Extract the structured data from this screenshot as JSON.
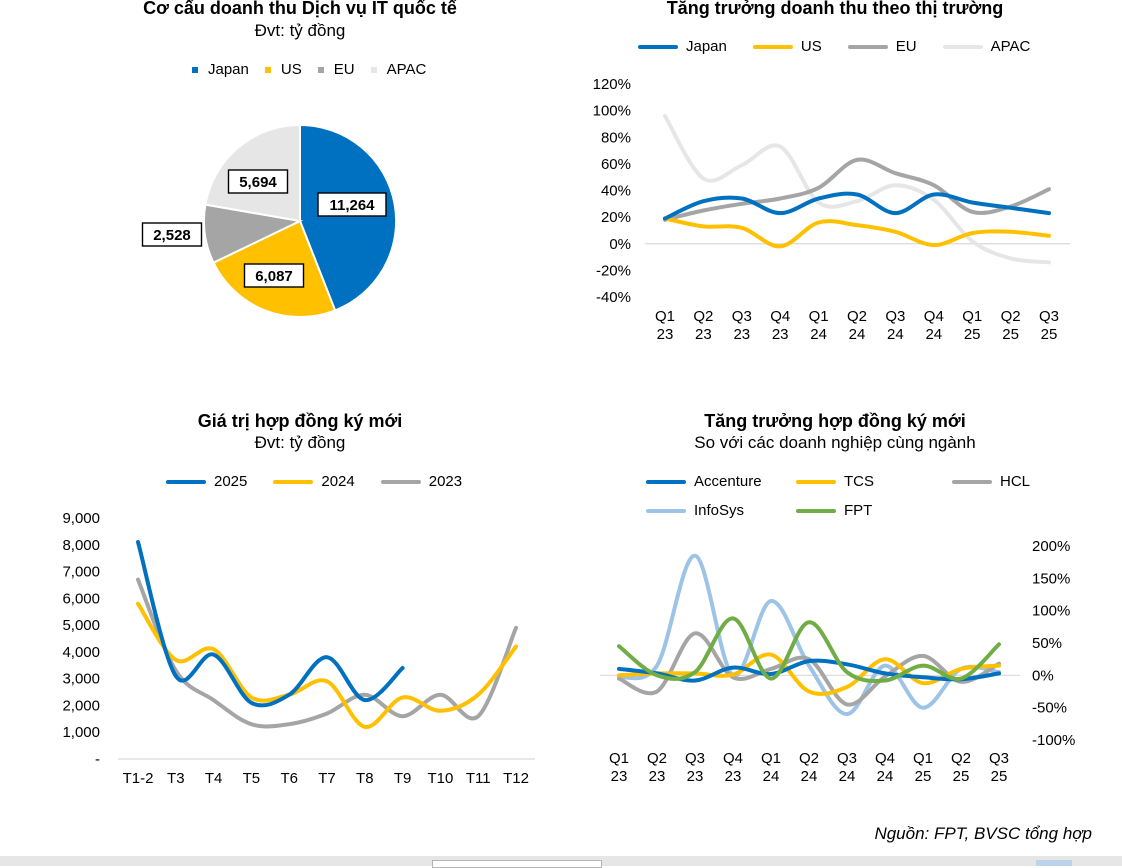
{
  "chart_data": [
    {
      "type": "pie",
      "title": "Cơ cấu doanh thu Dịch vụ IT quốc tế",
      "subtitle": "Đvt: tỷ đồng",
      "categories": [
        "Japan",
        "US",
        "EU",
        "APAC"
      ],
      "values": [
        11264,
        6087,
        2528,
        5694
      ],
      "value_labels": [
        "11,264",
        "6,087",
        "2,528",
        "5,694"
      ],
      "colors": [
        "#0070c0",
        "#ffc000",
        "#a5a5a5",
        "#e7e6e6"
      ],
      "legend_position": "top"
    },
    {
      "type": "line",
      "title": "Tăng trưởng doanh thu theo thị trường",
      "categories": [
        "Q1\n23",
        "Q2\n23",
        "Q3\n23",
        "Q4\n23",
        "Q1\n24",
        "Q2\n24",
        "Q3\n24",
        "Q4\n24",
        "Q1\n25",
        "Q2\n25",
        "Q3\n25"
      ],
      "y_ticks": [
        "120%",
        "100%",
        "80%",
        "60%",
        "40%",
        "20%",
        "0%",
        "-20%",
        "-40%"
      ],
      "ylim": [
        -40,
        120
      ],
      "series": [
        {
          "name": "Japan",
          "color": "#0070c0",
          "values": [
            19,
            32,
            34,
            23,
            34,
            37,
            23,
            37,
            31,
            27,
            23
          ]
        },
        {
          "name": "US",
          "color": "#ffc000",
          "values": [
            19,
            13,
            12,
            -2,
            16,
            14,
            9,
            -1,
            8,
            9,
            6
          ]
        },
        {
          "name": "EU",
          "color": "#a5a5a5",
          "values": [
            18,
            25,
            30,
            34,
            42,
            63,
            53,
            44,
            24,
            28,
            41
          ]
        },
        {
          "name": "APAC",
          "color": "#e7e6e6",
          "values": [
            96,
            49,
            59,
            73,
            31,
            32,
            44,
            33,
            2,
            -11,
            -14
          ]
        }
      ],
      "legend_position": "top"
    },
    {
      "type": "line",
      "title": "Giá trị hợp đồng ký mới",
      "subtitle": "Đvt: tỷ đồng",
      "categories": [
        "T1-2",
        "T3",
        "T4",
        "T5",
        "T6",
        "T7",
        "T8",
        "T9",
        "T10",
        "T11",
        "T12"
      ],
      "y_ticks": [
        "9,000",
        "8,000",
        "7,000",
        "6,000",
        "5,000",
        "4,000",
        "3,000",
        "2,000",
        "1,000",
        "-"
      ],
      "ylim": [
        0,
        9000
      ],
      "series": [
        {
          "name": "2025",
          "color": "#0070c0",
          "values": [
            8100,
            3100,
            3900,
            2100,
            2400,
            3800,
            2200,
            3400,
            null,
            null,
            null
          ]
        },
        {
          "name": "2024",
          "color": "#ffc000",
          "values": [
            5800,
            3700,
            4100,
            2300,
            2400,
            2900,
            1200,
            2300,
            1800,
            2400,
            4200
          ]
        },
        {
          "name": "2023",
          "color": "#a5a5a5",
          "values": [
            6700,
            3300,
            2200,
            1300,
            1300,
            1700,
            2400,
            1600,
            2400,
            1600,
            4900
          ]
        }
      ],
      "legend_position": "top"
    },
    {
      "type": "line",
      "title": "Tăng trưởng hợp đồng ký mới",
      "subtitle": "So với các doanh nghiệp cùng ngành",
      "categories": [
        "Q1\n23",
        "Q2\n23",
        "Q3\n23",
        "Q4\n23",
        "Q1\n24",
        "Q2\n24",
        "Q3\n24",
        "Q4\n24",
        "Q1\n25",
        "Q2\n25",
        "Q3\n25"
      ],
      "y_ticks": [
        "200%",
        "150%",
        "100%",
        "50%",
        "0%",
        "-50%",
        "-100%"
      ],
      "ylim": [
        -100,
        200
      ],
      "y_axis_side": "right",
      "series": [
        {
          "name": "Accenture",
          "color": "#0070c0",
          "values": [
            10,
            3,
            -8,
            12,
            2,
            22,
            17,
            3,
            -3,
            -6,
            3
          ]
        },
        {
          "name": "TCS",
          "color": "#ffc000",
          "values": [
            0,
            3,
            3,
            1,
            32,
            -25,
            -18,
            25,
            -12,
            10,
            15
          ]
        },
        {
          "name": "HCL",
          "color": "#a5a5a5",
          "values": [
            -5,
            -25,
            65,
            -3,
            10,
            25,
            -45,
            -2,
            30,
            -10,
            18
          ]
        },
        {
          "name": "InfoSys",
          "color": "#9dc3e6",
          "values": [
            -3,
            15,
            185,
            0,
            115,
            15,
            -60,
            15,
            -50,
            10,
            5
          ]
        },
        {
          "name": "FPT",
          "color": "#70ad47",
          "values": [
            45,
            0,
            5,
            88,
            -5,
            82,
            5,
            -8,
            15,
            -5,
            48
          ]
        }
      ],
      "legend_position": "top"
    }
  ],
  "source_note": "Nguồn: FPT, BVSC tổng hợp"
}
